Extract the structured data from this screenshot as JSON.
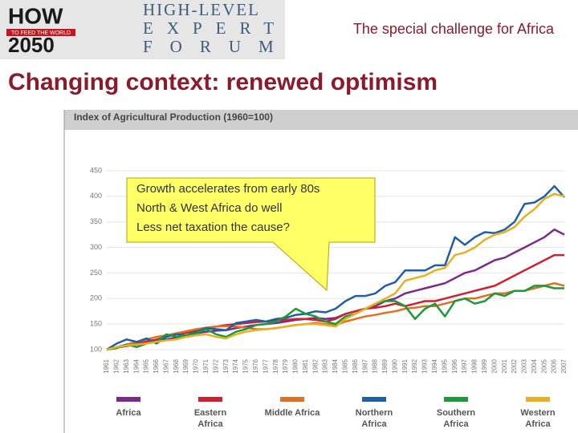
{
  "slide": {
    "logo_main": "HOW",
    "logo_sub": "TO FEED THE WORLD",
    "logo_year": "2050",
    "forum": [
      "HIGH-LEVEL",
      "EXPERT",
      "FORUM"
    ],
    "header_right": "The special challenge for Africa",
    "title": "Changing context: renewed optimism"
  },
  "chart_data": {
    "type": "line",
    "title": "Index of Agricultural Production (1960=100)",
    "annotation": [
      "Growth accelerates from early 80s",
      "North & West Africa do well",
      "Less net taxation the cause?"
    ],
    "categories": [
      "1961",
      "1962",
      "1963",
      "1964",
      "1965",
      "1966",
      "1967",
      "1968",
      "1969",
      "1970",
      "1971",
      "1972",
      "1973",
      "1974",
      "1975",
      "1976",
      "1977",
      "1978",
      "1979",
      "1980",
      "1981",
      "1982",
      "1983",
      "1984",
      "1985",
      "1986",
      "1987",
      "1988",
      "1989",
      "1990",
      "1991",
      "1992",
      "1993",
      "1994",
      "1995",
      "1996",
      "1997",
      "1998",
      "1999",
      "2000",
      "2001",
      "2002",
      "2003",
      "2004",
      "2005",
      "2006",
      "2007"
    ],
    "ylim": [
      100,
      450
    ],
    "yticks": [
      100,
      150,
      200,
      250,
      300,
      350,
      400,
      450
    ],
    "series": [
      {
        "name": "Africa",
        "color": "#7b2a8c",
        "values": [
          100,
          104,
          107,
          110,
          113,
          116,
          120,
          124,
          128,
          132,
          135,
          137,
          138,
          142,
          145,
          148,
          150,
          152,
          155,
          158,
          160,
          162,
          160,
          162,
          170,
          175,
          180,
          185,
          195,
          200,
          210,
          215,
          220,
          225,
          230,
          240,
          250,
          255,
          265,
          275,
          280,
          290,
          300,
          310,
          320,
          335,
          325
        ]
      },
      {
        "name": "Eastern Africa",
        "color": "#d0202e",
        "values": [
          100,
          104,
          108,
          112,
          116,
          120,
          125,
          130,
          133,
          137,
          142,
          145,
          148,
          150,
          152,
          154,
          155,
          157,
          158,
          160,
          160,
          158,
          155,
          160,
          170,
          175,
          180,
          182,
          185,
          190,
          185,
          190,
          195,
          195,
          200,
          205,
          210,
          215,
          220,
          225,
          235,
          245,
          255,
          265,
          275,
          285,
          285
        ]
      },
      {
        "name": "Middle Africa",
        "color": "#e07020",
        "values": [
          100,
          105,
          110,
          115,
          120,
          125,
          128,
          132,
          136,
          140,
          143,
          145,
          146,
          145,
          143,
          140,
          140,
          142,
          145,
          148,
          150,
          152,
          150,
          148,
          155,
          160,
          165,
          168,
          172,
          175,
          180,
          182,
          185,
          185,
          190,
          195,
          200,
          200,
          205,
          210,
          210,
          215,
          215,
          220,
          225,
          230,
          225
        ]
      },
      {
        "name": "Northern Africa",
        "color": "#1f5fa8",
        "values": [
          100,
          112,
          120,
          115,
          122,
          112,
          125,
          130,
          128,
          135,
          142,
          140,
          138,
          152,
          155,
          158,
          155,
          160,
          162,
          168,
          170,
          175,
          173,
          180,
          195,
          205,
          205,
          210,
          225,
          232,
          255,
          255,
          255,
          265,
          265,
          320,
          305,
          320,
          330,
          328,
          335,
          350,
          385,
          388,
          400,
          420,
          398
        ]
      },
      {
        "name": "Southern Africa",
        "color": "#1a9a3a",
        "values": [
          100,
          103,
          110,
          105,
          112,
          115,
          130,
          125,
          128,
          132,
          140,
          130,
          125,
          135,
          140,
          148,
          150,
          155,
          165,
          180,
          170,
          165,
          155,
          150,
          165,
          170,
          180,
          190,
          195,
          195,
          185,
          160,
          180,
          190,
          165,
          195,
          200,
          190,
          195,
          210,
          205,
          215,
          215,
          225,
          225,
          220,
          220
        ]
      },
      {
        "name": "Western Africa",
        "color": "#e8b020",
        "values": [
          100,
          105,
          108,
          110,
          112,
          115,
          118,
          120,
          125,
          128,
          130,
          125,
          122,
          130,
          135,
          138,
          140,
          142,
          145,
          148,
          150,
          150,
          148,
          145,
          160,
          170,
          180,
          190,
          200,
          210,
          235,
          240,
          245,
          255,
          260,
          285,
          290,
          300,
          315,
          325,
          330,
          340,
          360,
          375,
          395,
          405,
          400
        ]
      }
    ]
  }
}
